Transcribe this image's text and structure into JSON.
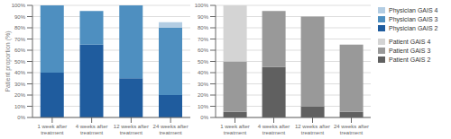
{
  "chart_data": [
    {
      "type": "bar",
      "stacked": true,
      "grid": true,
      "legend": "right",
      "y_label": "Patient proportion (%)",
      "categories": [
        "1 week after\ntreatment",
        "4 weeks after\ntreatment",
        "12 weeks after\ntreatment",
        "24 weeks after\ntreatment"
      ],
      "series": [
        {
          "name": "Physician GAIS 2",
          "color": "#1f5c9e",
          "values": [
            40,
            65,
            35,
            20
          ]
        },
        {
          "name": "Physician GAIS 3",
          "color": "#4e8fc0",
          "values": [
            60,
            30,
            65,
            60
          ]
        },
        {
          "name": "Physician GAIS 4",
          "color": "#b3cde3",
          "values": [
            0,
            0,
            0,
            5
          ]
        }
      ],
      "ylim": [
        0,
        100
      ],
      "yticks": [
        {
          "value": 0,
          "label": "0%"
        },
        {
          "value": 10,
          "label": "10%"
        },
        {
          "value": 20,
          "label": "20%"
        },
        {
          "value": 30,
          "label": "30%"
        },
        {
          "value": 40,
          "label": "40%"
        },
        {
          "value": 50,
          "label": "50%"
        },
        {
          "value": 60,
          "label": "60%"
        },
        {
          "value": 70,
          "label": "70%"
        },
        {
          "value": 80,
          "label": "80%"
        },
        {
          "value": 90,
          "label": "90%"
        },
        {
          "value": 100,
          "label": "100%"
        }
      ]
    },
    {
      "type": "bar",
      "stacked": true,
      "grid": true,
      "legend": "right",
      "categories": [
        "1 week after\ntreatment",
        "4 weeks after\ntreatment",
        "12 weeks after\ntreatment",
        "24 weeks after\ntreatment"
      ],
      "series": [
        {
          "name": "Patient GAIS 2",
          "color": "#606060",
          "values": [
            5,
            45,
            10,
            5
          ]
        },
        {
          "name": "Patient GAIS 3",
          "color": "#999999",
          "values": [
            45,
            50,
            80,
            60
          ]
        },
        {
          "name": "Patient GAIS 4",
          "color": "#d4d4d4",
          "values": [
            50,
            0,
            0,
            0
          ]
        }
      ],
      "ylim": [
        0,
        100
      ],
      "yticks": [
        {
          "value": 0,
          "label": "0%"
        },
        {
          "value": 10,
          "label": "10%"
        },
        {
          "value": 20,
          "label": "20%"
        },
        {
          "value": 30,
          "label": "30%"
        },
        {
          "value": 40,
          "label": "40%"
        },
        {
          "value": 50,
          "label": "50%"
        },
        {
          "value": 60,
          "label": "60%"
        },
        {
          "value": 70,
          "label": "70%"
        },
        {
          "value": 80,
          "label": "80%"
        },
        {
          "value": 90,
          "label": "90%"
        },
        {
          "value": 100,
          "label": "100%"
        }
      ]
    }
  ]
}
